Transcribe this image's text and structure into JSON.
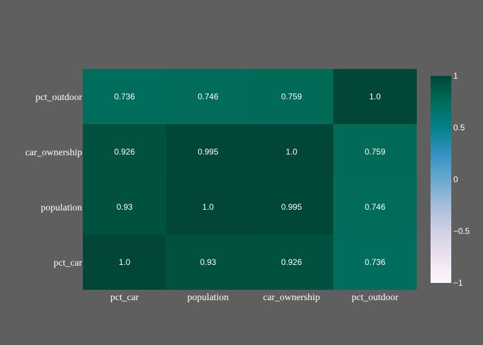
{
  "chart_data": {
    "type": "heatmap",
    "x_categories": [
      "pct_car",
      "population",
      "car_ownership",
      "pct_outdoor"
    ],
    "y_categories": [
      "pct_car",
      "population",
      "car_ownership",
      "pct_outdoor"
    ],
    "z": [
      [
        1.0,
        0.93,
        0.926,
        0.736
      ],
      [
        0.93,
        1.0,
        0.995,
        0.746
      ],
      [
        0.926,
        0.995,
        1.0,
        0.759
      ],
      [
        0.736,
        0.746,
        0.759,
        1.0
      ]
    ],
    "cell_labels": [
      [
        "1.0",
        "0.93",
        "0.926",
        "0.736"
      ],
      [
        "0.93",
        "1.0",
        "0.995",
        "0.746"
      ],
      [
        "0.926",
        "0.995",
        "1.0",
        "0.759"
      ],
      [
        "0.736",
        "0.746",
        "0.759",
        "1.0"
      ]
    ],
    "colorscale": "PuBuGn",
    "colorscale_stops": [
      [
        0.0,
        "#fff7fb"
      ],
      [
        0.125,
        "#ece2f0"
      ],
      [
        0.25,
        "#d0d1e6"
      ],
      [
        0.375,
        "#a6bddb"
      ],
      [
        0.5,
        "#67a9cf"
      ],
      [
        0.625,
        "#3690c0"
      ],
      [
        0.75,
        "#02818a"
      ],
      [
        0.875,
        "#016c59"
      ],
      [
        1.0,
        "#014636"
      ]
    ],
    "zmin": -1,
    "zmax": 1,
    "colorbar_ticks": [
      {
        "value": 1,
        "label": "1"
      },
      {
        "value": 0.5,
        "label": "0.5"
      },
      {
        "value": 0,
        "label": "0"
      },
      {
        "value": -0.5,
        "label": "−0.5"
      },
      {
        "value": -1,
        "label": "−1"
      }
    ],
    "background_color": "#5f5f5f",
    "text_color": "#ffffff"
  }
}
